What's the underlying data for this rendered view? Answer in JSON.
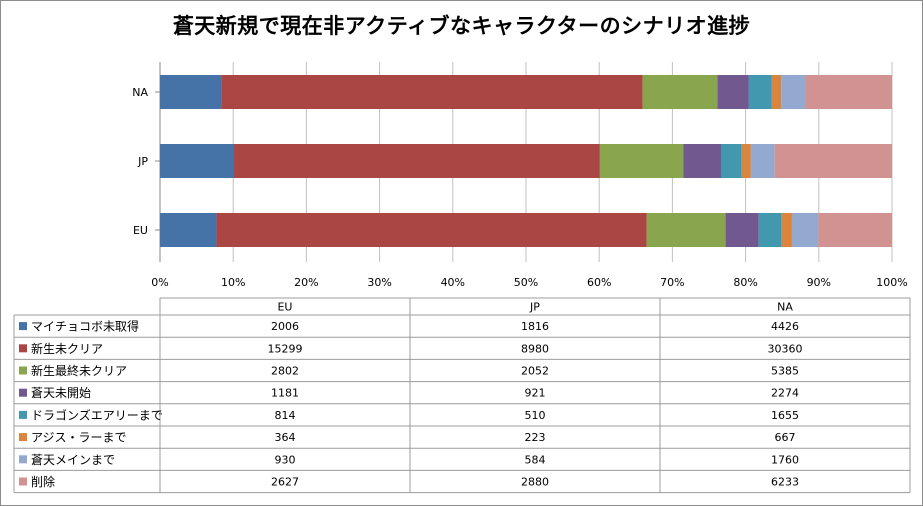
{
  "chart_data": {
    "type": "bar",
    "orientation": "horizontal",
    "stacked": "percent",
    "title": "蒼天新規で現在非アクティブなキャラクターのシナリオ進捗",
    "categories": [
      "EU",
      "JP",
      "NA"
    ],
    "x_ticks": [
      "0%",
      "10%",
      "20%",
      "30%",
      "40%",
      "50%",
      "60%",
      "70%",
      "80%",
      "90%",
      "100%"
    ],
    "xlim": [
      0,
      100
    ],
    "grid": true,
    "legend": "data-table-bottom",
    "series": [
      {
        "name": "マイチョコボ未取得",
        "color": "#4572a7",
        "values": [
          2006,
          1816,
          4426
        ]
      },
      {
        "name": "新生未クリア",
        "color": "#aa4643",
        "values": [
          15299,
          8980,
          30360
        ]
      },
      {
        "name": "新生最終未クリア",
        "color": "#89a54e",
        "values": [
          2802,
          2052,
          5385
        ]
      },
      {
        "name": "蒼天未開始",
        "color": "#71588f",
        "values": [
          1181,
          921,
          2274
        ]
      },
      {
        "name": "ドラゴンズエアリーまで",
        "color": "#4198af",
        "values": [
          814,
          510,
          1655
        ]
      },
      {
        "name": "アジス・ラーまで",
        "color": "#db843d",
        "values": [
          364,
          223,
          667
        ]
      },
      {
        "name": "蒼天メインまで",
        "color": "#93a9cf",
        "values": [
          930,
          584,
          1760
        ]
      },
      {
        "name": "削除",
        "color": "#d19392",
        "values": [
          2627,
          2880,
          6233
        ]
      }
    ]
  }
}
